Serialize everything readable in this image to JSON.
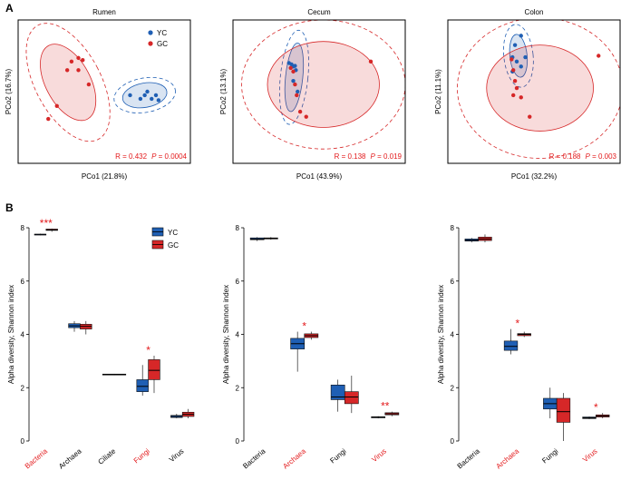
{
  "panel_labels": {
    "a": "A",
    "b": "B"
  },
  "colors": {
    "yc": "#1f5fb4",
    "gc": "#d62728",
    "sig": "#e31a1c",
    "axis": "#000000"
  },
  "chart_data": [
    {
      "type": "scatter",
      "title": "Rumen",
      "xlabel": "PCo1 (21.8%)",
      "ylabel": "PCo2 (16.7%)",
      "xlim": [
        -1,
        1
      ],
      "ylim": [
        -1,
        1
      ],
      "legend": {
        "position": "top-right",
        "entries": [
          "YC",
          "GC"
        ]
      },
      "stats": {
        "prefix": "R = ",
        "R": "0.432",
        "p_label": "P",
        "p": " = 0.0004"
      },
      "series": [
        {
          "name": "YC",
          "points": [
            [
              0.3,
              -0.05
            ],
            [
              0.42,
              -0.1
            ],
            [
              0.47,
              -0.05
            ],
            [
              0.5,
              0.0
            ],
            [
              0.55,
              -0.1
            ],
            [
              0.63,
              -0.12
            ],
            [
              0.6,
              -0.05
            ]
          ]
        },
        {
          "name": "GC",
          "points": [
            [
              -0.38,
              0.42
            ],
            [
              -0.3,
              0.47
            ],
            [
              -0.25,
              0.44
            ],
            [
              -0.3,
              0.3
            ],
            [
              -0.43,
              0.3
            ],
            [
              -0.18,
              0.1
            ],
            [
              -0.55,
              -0.2
            ],
            [
              -0.65,
              -0.38
            ]
          ]
        }
      ]
    },
    {
      "type": "scatter",
      "title": "Cecum",
      "xlabel": "PCo1 (43.9%)",
      "ylabel": "PCo2 (13.1%)",
      "xlim": [
        -1,
        1
      ],
      "ylim": [
        -1,
        1
      ],
      "stats": {
        "prefix": "R = ",
        "R": "0.138",
        "p_label": "P",
        "p": " = 0.019"
      },
      "series": [
        {
          "name": "YC",
          "points": [
            [
              -0.35,
              0.4
            ],
            [
              -0.32,
              0.38
            ],
            [
              -0.3,
              0.35
            ],
            [
              -0.28,
              0.36
            ],
            [
              -0.27,
              0.3
            ],
            [
              -0.3,
              0.15
            ],
            [
              -0.25,
              0.0
            ]
          ]
        },
        {
          "name": "GC",
          "points": [
            [
              -0.33,
              0.33
            ],
            [
              -0.3,
              0.28
            ],
            [
              -0.28,
              0.1
            ],
            [
              -0.26,
              -0.05
            ],
            [
              -0.22,
              -0.28
            ],
            [
              -0.15,
              -0.35
            ],
            [
              0.6,
              0.42
            ]
          ]
        }
      ]
    },
    {
      "type": "scatter",
      "title": "Colon",
      "xlabel": "PCo1 (32.2%)",
      "ylabel": "PCo2 (11.1%)",
      "xlim": [
        -1,
        1
      ],
      "ylim": [
        -1,
        1
      ],
      "stats": {
        "prefix": "R = ",
        "R": "0.188",
        "p_label": "P",
        "p": " = 0.003"
      },
      "series": [
        {
          "name": "YC",
          "points": [
            [
              -0.15,
              0.78
            ],
            [
              -0.22,
              0.65
            ],
            [
              -0.25,
              0.48
            ],
            [
              -0.2,
              0.42
            ],
            [
              -0.1,
              0.48
            ],
            [
              -0.15,
              0.35
            ],
            [
              -0.25,
              0.28
            ]
          ]
        },
        {
          "name": "GC",
          "points": [
            [
              -0.26,
              0.45
            ],
            [
              -0.24,
              0.3
            ],
            [
              -0.22,
              0.15
            ],
            [
              -0.2,
              0.05
            ],
            [
              -0.24,
              -0.05
            ],
            [
              -0.15,
              -0.08
            ],
            [
              -0.05,
              -0.35
            ],
            [
              0.75,
              0.5
            ]
          ]
        }
      ]
    },
    {
      "type": "box",
      "ylabel": "Alpha diversity, Shannon index",
      "ylim": [
        0,
        8
      ],
      "yticks": [
        0,
        2,
        4,
        6,
        8
      ],
      "legend": {
        "position": "top-right",
        "entries": [
          "YC",
          "GC"
        ]
      },
      "categories": [
        "Bacteria",
        "Archaea",
        "Ciliate",
        "Fungi",
        "Virus"
      ],
      "red_labels": [
        "Bacteria",
        "Fungi"
      ],
      "significance": {
        "Bacteria": "***",
        "Fungi": "*"
      },
      "series": [
        {
          "name": "YC",
          "boxes": [
            [
              7.72,
              7.74,
              7.75,
              7.76,
              7.78
            ],
            [
              4.1,
              4.25,
              4.32,
              4.4,
              4.5
            ],
            [
              2.48,
              2.49,
              2.5,
              2.51,
              2.52
            ],
            [
              1.7,
              1.85,
              2.05,
              2.3,
              2.85
            ],
            [
              0.85,
              0.88,
              0.92,
              0.96,
              1.02
            ]
          ]
        },
        {
          "name": "GC",
          "boxes": [
            [
              7.85,
              7.9,
              7.92,
              7.95,
              7.97
            ],
            [
              4.0,
              4.2,
              4.3,
              4.38,
              4.5
            ],
            [
              2.48,
              2.49,
              2.5,
              2.51,
              2.52
            ],
            [
              1.8,
              2.3,
              2.65,
              3.05,
              3.2
            ],
            [
              0.85,
              0.92,
              1.0,
              1.08,
              1.2
            ]
          ]
        }
      ]
    },
    {
      "type": "box",
      "ylabel": "Alpha diversity, Shannon index",
      "ylim": [
        0,
        8
      ],
      "yticks": [
        0,
        2,
        4,
        6,
        8
      ],
      "categories": [
        "Bacteria",
        "Archaea",
        "Fungi",
        "Virus"
      ],
      "red_labels": [
        "Archaea",
        "Virus"
      ],
      "significance": {
        "Archaea": "*",
        "Virus": "**"
      },
      "series": [
        {
          "name": "YC",
          "boxes": [
            [
              7.5,
              7.55,
              7.58,
              7.62,
              7.65
            ],
            [
              2.6,
              3.45,
              3.65,
              3.85,
              4.1
            ],
            [
              1.1,
              1.55,
              1.65,
              2.1,
              2.3
            ],
            [
              0.85,
              0.87,
              0.89,
              0.91,
              0.93
            ]
          ]
        },
        {
          "name": "GC",
          "boxes": [
            [
              7.55,
              7.58,
              7.6,
              7.62,
              7.65
            ],
            [
              3.8,
              3.88,
              3.95,
              4.02,
              4.1
            ],
            [
              1.05,
              1.4,
              1.65,
              1.85,
              2.45
            ],
            [
              0.93,
              0.98,
              1.02,
              1.06,
              1.1
            ]
          ]
        }
      ]
    },
    {
      "type": "box",
      "ylabel": "Alpha diversity, Shannon index",
      "ylim": [
        0,
        8
      ],
      "yticks": [
        0,
        2,
        4,
        6,
        8
      ],
      "categories": [
        "Bacteria",
        "Archaea",
        "Fungi",
        "Virus"
      ],
      "red_labels": [
        "Archaea",
        "Virus"
      ],
      "significance": {
        "Archaea": "*",
        "Virus": "*"
      },
      "series": [
        {
          "name": "YC",
          "boxes": [
            [
              7.45,
              7.5,
              7.53,
              7.58,
              7.62
            ],
            [
              3.25,
              3.4,
              3.55,
              3.75,
              4.2
            ],
            [
              0.85,
              1.2,
              1.4,
              1.6,
              2.0
            ],
            [
              0.82,
              0.84,
              0.87,
              0.9,
              0.92
            ]
          ]
        },
        {
          "name": "GC",
          "boxes": [
            [
              7.45,
              7.52,
              7.58,
              7.65,
              7.75
            ],
            [
              3.9,
              3.95,
              4.0,
              4.03,
              4.1
            ],
            [
              0.0,
              0.7,
              1.1,
              1.6,
              1.8
            ],
            [
              0.85,
              0.9,
              0.94,
              0.98,
              1.05
            ]
          ]
        }
      ]
    }
  ]
}
